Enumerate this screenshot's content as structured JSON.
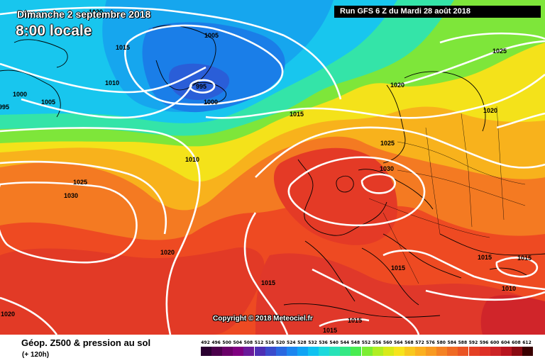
{
  "header": {
    "run_label": "Run GFS 6 Z du Mardi 28 août 2018",
    "valid_date": "Dimanche 2 septembre 2018",
    "valid_time": "8:00 locale"
  },
  "footer": {
    "title": "Géop. Z500 & pression au sol",
    "forecast_offset": "(+ 120h)",
    "copyright": "Copyright © 2018 Meteociel.fr"
  },
  "legend": {
    "values": [
      "492",
      "496",
      "500",
      "504",
      "508",
      "512",
      "516",
      "520",
      "524",
      "528",
      "532",
      "536",
      "540",
      "544",
      "548",
      "552",
      "556",
      "560",
      "564",
      "568",
      "572",
      "576",
      "580",
      "584",
      "588",
      "592",
      "596",
      "600",
      "604",
      "608",
      "612"
    ],
    "colors": [
      "#2a0030",
      "#4b004b",
      "#6a0068",
      "#7f0080",
      "#6a1a9a",
      "#4d2fb4",
      "#3a4ccc",
      "#2a68e0",
      "#1c86ef",
      "#10a4f4",
      "#10c2f0",
      "#1cd9dc",
      "#28e2b8",
      "#34e884",
      "#48ec50",
      "#7cee32",
      "#b0ee22",
      "#d8ea18",
      "#f6e41c",
      "#f8c81e",
      "#fbb020",
      "#f89a22",
      "#f48224",
      "#ef6a24",
      "#ea5424",
      "#e44024",
      "#de3026",
      "#cc2426",
      "#b8141e",
      "#8a0a12",
      "#3a0000"
    ]
  },
  "map": {
    "isobar_labels": [
      "1020",
      "1015",
      "1010",
      "1005",
      "1000",
      "995",
      "1005",
      "1005",
      "995",
      "1000",
      "1015",
      "1010",
      "1025",
      "1030",
      "1020",
      "1015",
      "1015",
      "1010",
      "1015",
      "1020",
      "1025",
      "1030",
      "1025",
      "1020",
      "1015",
      "1010",
      "1015",
      "1015",
      "1015",
      "1020"
    ]
  }
}
